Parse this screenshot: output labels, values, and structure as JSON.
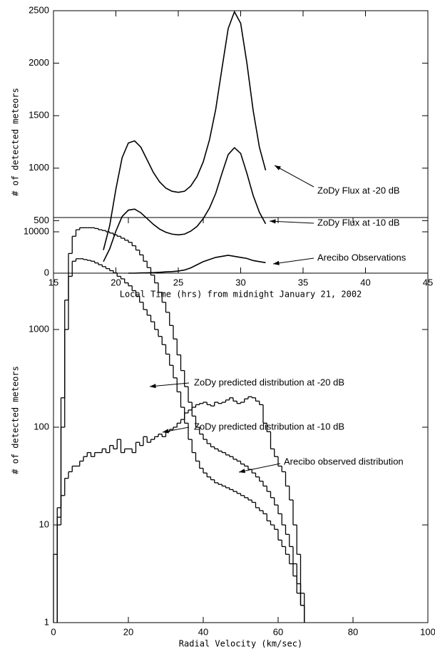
{
  "chart_data": [
    {
      "type": "line",
      "xlabel": "Local Time (hrs) from midnight January 21, 2002",
      "ylabel": "# of detected meteors",
      "x": [
        19,
        19.5,
        20,
        20.5,
        21,
        21.5,
        22,
        22.5,
        23,
        23.5,
        24,
        24.5,
        25,
        25.5,
        26,
        26.5,
        27,
        27.5,
        28,
        28.5,
        29,
        29.5,
        30,
        30.5,
        31,
        31.5,
        32
      ],
      "series": [
        {
          "name": "ZoDy Flux at -20 dB",
          "color": "#000000",
          "values": [
            220,
            450,
            800,
            1100,
            1240,
            1260,
            1200,
            1080,
            960,
            870,
            810,
            780,
            770,
            780,
            830,
            920,
            1060,
            1270,
            1560,
            1950,
            2330,
            2490,
            2380,
            2000,
            1550,
            1200,
            980
          ]
        },
        {
          "name": "ZoDy Flux at -10 dB",
          "color": "#000000",
          "values": [
            110,
            230,
            400,
            540,
            600,
            610,
            575,
            520,
            465,
            420,
            390,
            372,
            365,
            372,
            400,
            445,
            520,
            620,
            760,
            950,
            1130,
            1195,
            1140,
            950,
            740,
            580,
            470
          ]
        },
        {
          "name": "Arecibo Observations",
          "color": "#000000",
          "values": [
            null,
            null,
            null,
            null,
            0,
            0,
            2,
            3,
            5,
            8,
            12,
            15,
            20,
            30,
            50,
            80,
            110,
            130,
            150,
            160,
            170,
            160,
            150,
            140,
            120,
            110,
            100
          ]
        }
      ],
      "xlim": [
        15,
        45
      ],
      "xticks": [
        15,
        20,
        25,
        30,
        35,
        40,
        45
      ],
      "ylim": [
        0,
        2500
      ],
      "yticks": [
        0,
        500,
        1000,
        1500,
        2000,
        2500
      ]
    },
    {
      "type": "histogram",
      "xlabel": "Radial Velocity (km/sec)",
      "ylabel": "# of detected meteors",
      "log_scale_y": true,
      "bins": [
        0,
        1,
        2,
        3,
        4,
        5,
        6,
        7,
        8,
        9,
        10,
        11,
        12,
        13,
        14,
        15,
        16,
        17,
        18,
        19,
        20,
        21,
        22,
        23,
        24,
        25,
        26,
        27,
        28,
        29,
        30,
        31,
        32,
        33,
        34,
        35,
        36,
        37,
        38,
        39,
        40,
        41,
        42,
        43,
        44,
        45,
        46,
        47,
        48,
        49,
        50,
        51,
        52,
        53,
        54,
        55,
        56,
        57,
        58,
        59,
        60,
        61,
        62,
        63,
        64,
        65,
        66,
        67
      ],
      "series": [
        {
          "name": "ZoDy predicted distribution at -20 dB",
          "color": "#000000",
          "values": [
            null,
            12,
            200,
            2000,
            6000,
            9000,
            10500,
            11000,
            11000,
            11000,
            11000,
            10800,
            10500,
            10300,
            10000,
            9700,
            9300,
            9000,
            8600,
            8200,
            7800,
            7200,
            6500,
            5800,
            5000,
            4300,
            3600,
            3000,
            2400,
            1900,
            1500,
            1100,
            800,
            550,
            380,
            260,
            180,
            130,
            100,
            85,
            75,
            68,
            63,
            60,
            57,
            55,
            52,
            50,
            47,
            45,
            42,
            40,
            37,
            34,
            31,
            28,
            25,
            22,
            19,
            16,
            13,
            10,
            8,
            6,
            4,
            2.5,
            1.5
          ]
        },
        {
          "name": "ZoDy predicted distribution at -10 dB",
          "color": "#000000",
          "values": [
            null,
            10,
            100,
            1000,
            3500,
            5000,
            5300,
            5300,
            5200,
            5100,
            5000,
            4800,
            4600,
            4400,
            4200,
            4000,
            3800,
            3500,
            3300,
            3000,
            2800,
            2500,
            2200,
            1900,
            1600,
            1400,
            1200,
            1000,
            850,
            700,
            560,
            430,
            320,
            230,
            160,
            110,
            75,
            55,
            45,
            38,
            34,
            31,
            29,
            27,
            26,
            25,
            24,
            23,
            22,
            21,
            20,
            19,
            18,
            17,
            15,
            14,
            13,
            11,
            10,
            9,
            7,
            6,
            5,
            4,
            3,
            2,
            1.5
          ]
        },
        {
          "name": "Arecibo observed distribution",
          "color": "#000000",
          "values": [
            5,
            15,
            20,
            30,
            35,
            40,
            40,
            45,
            50,
            55,
            50,
            55,
            55,
            60,
            55,
            65,
            60,
            75,
            55,
            60,
            60,
            55,
            70,
            65,
            80,
            70,
            75,
            80,
            85,
            80,
            90,
            95,
            100,
            110,
            120,
            140,
            150,
            160,
            170,
            175,
            180,
            170,
            165,
            180,
            175,
            180,
            190,
            200,
            185,
            175,
            180,
            195,
            205,
            200,
            185,
            170,
            110,
            90,
            60,
            50,
            40,
            35,
            25,
            18,
            10,
            5,
            2
          ]
        }
      ],
      "xlim": [
        0,
        100
      ],
      "xticks": [
        0,
        20,
        40,
        60,
        80,
        100
      ],
      "ylim": [
        1,
        14000
      ],
      "yticks": [
        1,
        10,
        100,
        1000,
        10000
      ]
    }
  ]
}
